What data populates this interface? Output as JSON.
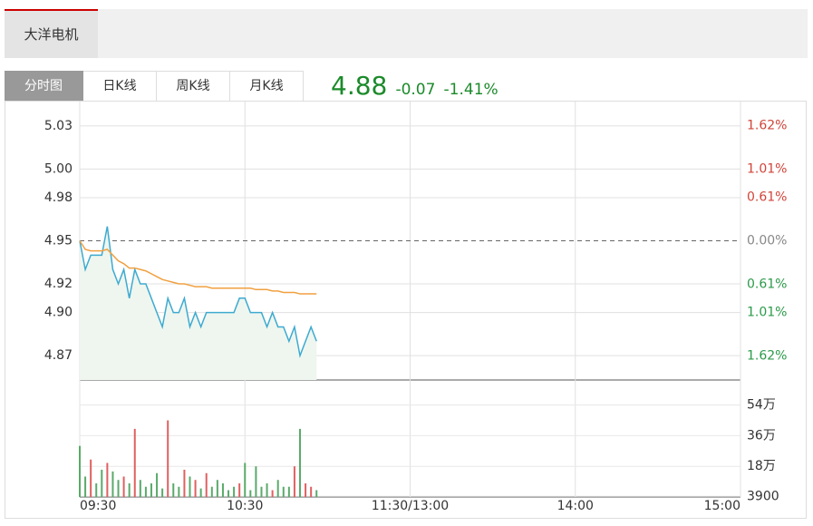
{
  "header": {
    "tab": "大洋电机"
  },
  "tabs": [
    "分时图",
    "日K线",
    "周K线",
    "月K线"
  ],
  "quote": {
    "price": "4.88",
    "change": "-0.07",
    "percent": "-1.41%"
  },
  "chart_data": {
    "type": "line",
    "x": [
      0,
      2,
      4,
      6,
      8,
      10,
      12,
      14,
      16,
      18,
      20,
      22,
      24,
      26,
      28,
      30,
      32,
      34,
      36,
      38,
      40,
      42,
      44,
      46,
      48,
      50,
      52,
      54,
      56,
      58,
      60,
      62,
      64,
      66,
      68,
      70,
      72,
      74,
      76,
      78,
      80,
      82,
      84,
      86
    ],
    "xlim": [
      0,
      240
    ],
    "xticks": [
      {
        "value": 0,
        "label": "09:30"
      },
      {
        "value": 60,
        "label": "10:30"
      },
      {
        "value": 120,
        "label": "11:30/13:00"
      },
      {
        "value": 180,
        "label": "14:00"
      },
      {
        "value": 240,
        "label": "15:00"
      }
    ],
    "series": [
      {
        "name": "price",
        "color": "#3eaad0",
        "values": [
          4.95,
          4.93,
          4.94,
          4.94,
          4.94,
          4.96,
          4.93,
          4.92,
          4.93,
          4.91,
          4.93,
          4.92,
          4.92,
          4.91,
          4.9,
          4.89,
          4.91,
          4.9,
          4.9,
          4.91,
          4.89,
          4.9,
          4.89,
          4.9,
          4.9,
          4.9,
          4.9,
          4.9,
          4.9,
          4.91,
          4.91,
          4.9,
          4.9,
          4.9,
          4.89,
          4.9,
          4.89,
          4.89,
          4.88,
          4.89,
          4.87,
          4.88,
          4.89,
          4.88
        ]
      },
      {
        "name": "average",
        "color": "#f0a040",
        "values": [
          4.95,
          4.944,
          4.943,
          4.943,
          4.943,
          4.944,
          4.94,
          4.936,
          4.934,
          4.931,
          4.931,
          4.93,
          4.929,
          4.927,
          4.925,
          4.923,
          4.922,
          4.921,
          4.92,
          4.92,
          4.919,
          4.918,
          4.918,
          4.918,
          4.917,
          4.917,
          4.917,
          4.917,
          4.917,
          4.917,
          4.917,
          4.917,
          4.916,
          4.916,
          4.916,
          4.915,
          4.915,
          4.914,
          4.914,
          4.914,
          4.913,
          4.913,
          4.913,
          4.913
        ]
      }
    ],
    "ylim": [
      4.853,
      5.047
    ],
    "yticks": [
      5.03,
      {
        "value": 5.0,
        "label": "5.00"
      },
      4.98,
      4.95,
      4.92,
      {
        "value": 4.9,
        "label": "4.90"
      },
      4.87
    ],
    "y2lim": [
      -1.96,
      1.96
    ],
    "y2ticks": [
      {
        "value": 1.62,
        "label": "1.62%"
      },
      {
        "value": 1.01,
        "label": "1.01%"
      },
      {
        "value": 0.61,
        "label": "0.61%"
      },
      {
        "value": 0,
        "label": "0.00%"
      },
      {
        "value": -0.61,
        "label": "0.61%"
      },
      {
        "value": -1.01,
        "label": "1.01%"
      },
      {
        "value": -1.62,
        "label": "1.62%"
      }
    ],
    "volume": {
      "values": [
        30,
        12,
        22,
        8,
        16,
        20,
        15,
        10,
        12,
        8,
        40,
        10,
        6,
        8,
        14,
        5,
        45,
        8,
        6,
        16,
        12,
        10,
        5,
        14,
        6,
        10,
        8,
        4,
        6,
        8,
        20,
        4,
        18,
        6,
        8,
        4,
        10,
        6,
        6,
        18,
        40,
        8,
        6,
        4
      ],
      "ylim": [
        0,
        68.7
      ],
      "yticks": [
        {
          "value": 54,
          "label": "54万"
        },
        {
          "value": 36,
          "label": "36万"
        },
        {
          "value": 18,
          "label": "18万"
        },
        {
          "value": 0.39,
          "label": "3900"
        }
      ],
      "up_color": "#e06060",
      "down_color": "#5aaa6a"
    }
  }
}
